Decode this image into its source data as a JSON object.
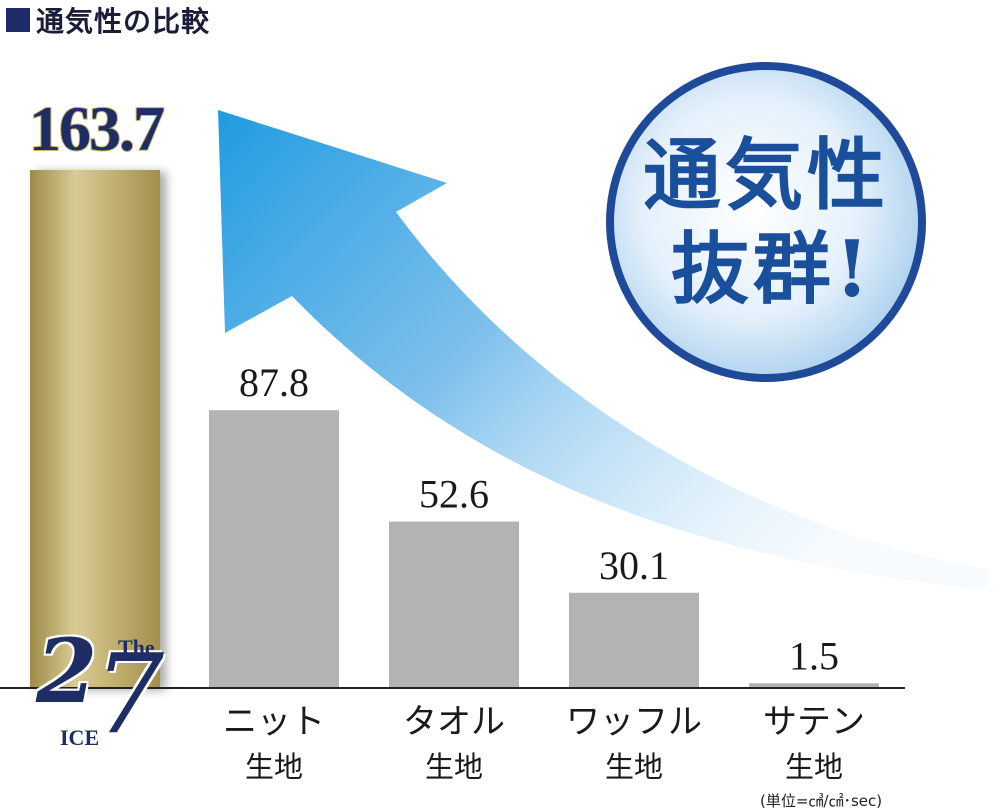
{
  "header": {
    "title": "通気性の比較"
  },
  "badge": {
    "line1": "通気性",
    "line2": "抜群!"
  },
  "logo": {
    "the": "The",
    "two": "2",
    "seven": "7",
    "ice": "ICE"
  },
  "unit_label": "(単位=㎤/㎠･sec)",
  "colors": {
    "highlight_bar": "#b2a160",
    "other_bars": "#b3b3b3",
    "arrow": "#2a9fe0",
    "badge_text": "#1a4f9c",
    "navy": "#1f2a6b"
  },
  "chart_data": {
    "type": "bar",
    "title": "通気性の比較",
    "xlabel": "",
    "ylabel": "",
    "ylim": [
      0,
      163.7
    ],
    "grid": false,
    "categories": [
      {
        "label": "",
        "sublabel": "",
        "value": 163.7,
        "display": "163.7",
        "highlight": true
      },
      {
        "label": "ニット",
        "sublabel": "生地",
        "value": 87.8,
        "display": "87.8",
        "highlight": false
      },
      {
        "label": "タオル",
        "sublabel": "生地",
        "value": 52.6,
        "display": "52.6",
        "highlight": false
      },
      {
        "label": "ワッフル",
        "sublabel": "生地",
        "value": 30.1,
        "display": "30.1",
        "highlight": false
      },
      {
        "label": "サテン",
        "sublabel": "生地",
        "value": 1.5,
        "display": "1.5",
        "highlight": false
      }
    ]
  }
}
